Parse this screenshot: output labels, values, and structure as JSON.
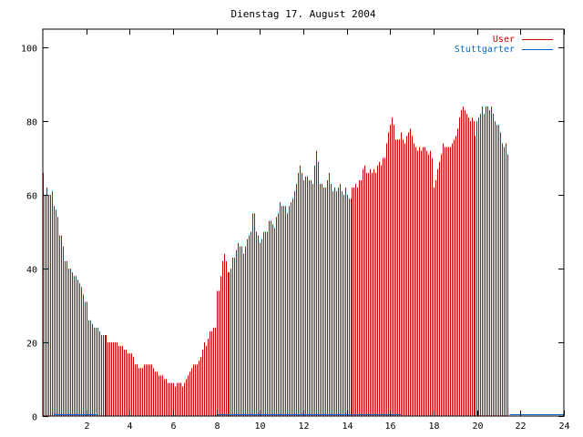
{
  "chart_data": {
    "type": "bar",
    "title": "Dienstag 17. August 2004",
    "xlabel": "",
    "ylabel": "",
    "xlim": [
      0,
      24
    ],
    "ylim": [
      0,
      105
    ],
    "x_ticks": [
      2,
      4,
      6,
      8,
      10,
      12,
      14,
      16,
      18,
      20,
      22,
      24
    ],
    "y_ticks": [
      0,
      20,
      40,
      60,
      80,
      100
    ],
    "grid": false,
    "legend_position": "top-right",
    "series": [
      {
        "name": "User",
        "color": "#cc0000",
        "interval_hours": 0.0833,
        "values": [
          66,
          60,
          62,
          60,
          60,
          61,
          57,
          56,
          54,
          49,
          49,
          46,
          42,
          42,
          40,
          40,
          39,
          38,
          38,
          37,
          36,
          35,
          33,
          31,
          31,
          26,
          26,
          25,
          24,
          24,
          24,
          23,
          22,
          22,
          22,
          22,
          20,
          20,
          20,
          20,
          20,
          20,
          19,
          19,
          19,
          18,
          18,
          17,
          17,
          17,
          16,
          14,
          14,
          13,
          13,
          13,
          14,
          14,
          14,
          14,
          14,
          13,
          12,
          12,
          11,
          11,
          11,
          10,
          10,
          9,
          9,
          9,
          9,
          8,
          9,
          9,
          9,
          8,
          9,
          10,
          11,
          12,
          13,
          14,
          14,
          14,
          15,
          16,
          18,
          20,
          19,
          21,
          23,
          23,
          24,
          24,
          34,
          34,
          38,
          42,
          44,
          42,
          39,
          39,
          40,
          43,
          43,
          45,
          47,
          46,
          46,
          44,
          46,
          48,
          49,
          50,
          55,
          55,
          50,
          49,
          47,
          48,
          50,
          50,
          50,
          53,
          53,
          52,
          51,
          54,
          55,
          58,
          57,
          57,
          57,
          55,
          57,
          58,
          59,
          61,
          63,
          66,
          68,
          66,
          64,
          65,
          65,
          64,
          64,
          63,
          68,
          72,
          69,
          63,
          63,
          62,
          62,
          64,
          66,
          63,
          61,
          62,
          61,
          62,
          63,
          61,
          60,
          62,
          60,
          59,
          59,
          62,
          62,
          63,
          62,
          64,
          64,
          67,
          68,
          66,
          66,
          67,
          66,
          67,
          66,
          68,
          69,
          68,
          70,
          70,
          74,
          77,
          79,
          81,
          79,
          75,
          75,
          75,
          77,
          75,
          74,
          76,
          77,
          78,
          76,
          74,
          73,
          72,
          73,
          72,
          73,
          73,
          72,
          71,
          72,
          70,
          62,
          64,
          67,
          69,
          71,
          74,
          73,
          73,
          73,
          73,
          74,
          75,
          76,
          78,
          81,
          83,
          84,
          83,
          82,
          81,
          80,
          81,
          80,
          76,
          80,
          81,
          82,
          84,
          82,
          84,
          84,
          83,
          84,
          82,
          80,
          79,
          79,
          77,
          74,
          73,
          74,
          71
        ]
      },
      {
        "name": "Stuttgarter",
        "color": "#0066cc",
        "segments": [
          [
            0.5,
            2.5
          ],
          [
            8.0,
            16.5
          ],
          [
            21.5,
            24.0
          ]
        ],
        "value": 0.5
      }
    ]
  }
}
